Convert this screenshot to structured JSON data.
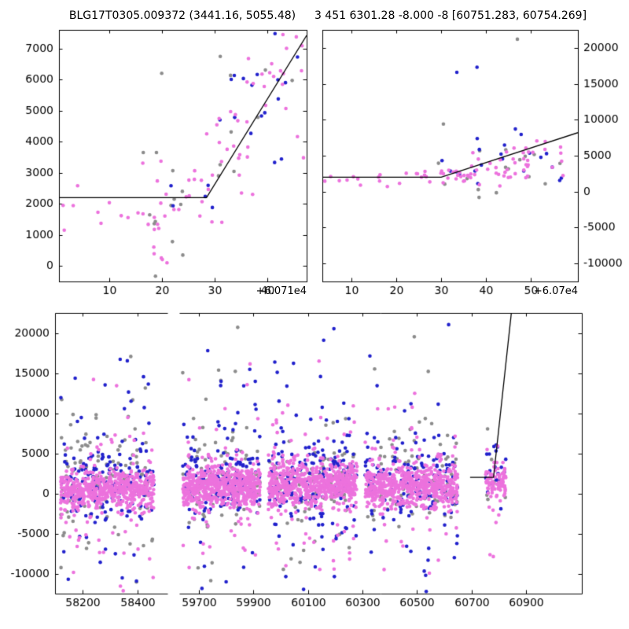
{
  "chart_data": {
    "type": "scatter",
    "grid": false,
    "colors": {
      "magenta": "#ec72dd",
      "blue": "#2222cc",
      "gray": "#8c8c8c",
      "fit_line": "#000000"
    },
    "render": {
      "seed": 1337,
      "marker_radius": 2.3
    },
    "panels": {
      "top_left": {
        "title": "BLG17T0305.009372 (3441.16, 5055.48)",
        "xlim": [
          0.5,
          47.5
        ],
        "ylim": [
          -500,
          7600
        ],
        "xticks": [
          10,
          20,
          30,
          40
        ],
        "yticks": [
          0,
          1000,
          2000,
          3000,
          4000,
          5000,
          6000,
          7000
        ],
        "x_offset_label": "+6.071e4",
        "y_label_side": "left",
        "fit_line": [
          [
            0.5,
            2200
          ],
          [
            28.5,
            2200
          ],
          [
            47.5,
            7420
          ]
        ],
        "clusters": [
          {
            "color": "magenta",
            "n": 6,
            "x": [
              0.5,
              12
            ],
            "mean": 1800,
            "sig": 700,
            "out_frac": 0,
            "out_sig": 0
          },
          {
            "color": "magenta",
            "n": 20,
            "x": [
              12,
              28
            ],
            "mean": 2200,
            "sig": 650,
            "out_frac": 0,
            "out_sig": 0
          },
          {
            "color": "magenta",
            "n": 8,
            "x": [
              17,
              27
            ],
            "mean": 900,
            "sig": 550,
            "out_frac": 0,
            "out_sig": 0
          },
          {
            "color": "magenta",
            "n": 22,
            "x": [
              27,
              38
            ],
            "mean": 3400,
            "sig": 850,
            "out_frac": 0,
            "out_sig": 0
          },
          {
            "color": "magenta",
            "n": 20,
            "x": [
              36,
              47.5
            ],
            "mean": 5600,
            "sig": 1050,
            "out_frac": 0,
            "out_sig": 0
          },
          {
            "color": "blue",
            "n": 5,
            "x": [
              18,
              30
            ],
            "mean": 2400,
            "sig": 500,
            "out_frac": 0,
            "out_sig": 0
          },
          {
            "color": "blue",
            "n": 16,
            "x": [
              30,
              47.5
            ],
            "mean": 5400,
            "sig": 1100,
            "out_frac": 0,
            "out_sig": 0
          },
          {
            "color": "gray",
            "n": 10,
            "x": [
              16,
              30
            ],
            "mean": 1700,
            "sig": 850,
            "out_frac": 0,
            "out_sig": 0
          },
          {
            "color": "gray",
            "n": 9,
            "x": [
              28,
              47.5
            ],
            "mean": 4800,
            "sig": 1400,
            "out_frac": 0,
            "out_sig": 0
          }
        ],
        "extra_points": [
          {
            "color": "gray",
            "x": 20,
            "y": 6200
          },
          {
            "color": "gray",
            "x": 16.5,
            "y": 3650
          },
          {
            "color": "gray",
            "x": 19,
            "y": 3650
          },
          {
            "color": "magenta",
            "x": 1.5,
            "y": 1150
          },
          {
            "color": "magenta",
            "x": 43,
            "y": 7450
          },
          {
            "color": "blue",
            "x": 41.5,
            "y": 7480
          },
          {
            "color": "magenta",
            "x": 21,
            "y": 100
          },
          {
            "color": "gray",
            "x": 24,
            "y": 350
          }
        ]
      },
      "top_right": {
        "title": "3 451 6301.28 -8.000 -8 [60751.283, 60754.269]",
        "xlim": [
          3.5,
          60.5
        ],
        "ylim": [
          -12500,
          22500
        ],
        "xticks": [
          10,
          20,
          30,
          40,
          50
        ],
        "yticks": [
          -10000,
          -5000,
          0,
          5000,
          10000,
          15000,
          20000
        ],
        "x_offset_label": "+6.07e4",
        "y_label_side": "right",
        "fit_line": [
          [
            3.5,
            2000
          ],
          [
            30,
            2000
          ],
          [
            60.5,
            8200
          ]
        ],
        "clusters": [
          {
            "color": "magenta",
            "n": 10,
            "x": [
              4,
              22
            ],
            "mean": 1900,
            "sig": 500,
            "out_frac": 0,
            "out_sig": 0
          },
          {
            "color": "magenta",
            "n": 28,
            "x": [
              22,
              38
            ],
            "mean": 2200,
            "sig": 650,
            "out_frac": 0,
            "out_sig": 0
          },
          {
            "color": "magenta",
            "n": 26,
            "x": [
              36,
              50
            ],
            "mean": 3200,
            "sig": 1000,
            "out_frac": 0,
            "out_sig": 0
          },
          {
            "color": "magenta",
            "n": 16,
            "x": [
              46,
              58
            ],
            "mean": 5200,
            "sig": 1300,
            "out_frac": 0,
            "out_sig": 0
          },
          {
            "color": "blue",
            "n": 7,
            "x": [
              26,
              40
            ],
            "mean": 2600,
            "sig": 800,
            "out_frac": 0,
            "out_sig": 0
          },
          {
            "color": "blue",
            "n": 14,
            "x": [
              38,
              58
            ],
            "mean": 5000,
            "sig": 1600,
            "out_frac": 0,
            "out_sig": 0
          },
          {
            "color": "gray",
            "n": 9,
            "x": [
              24,
              45
            ],
            "mean": 2000,
            "sig": 1500,
            "out_frac": 0,
            "out_sig": 0
          },
          {
            "color": "gray",
            "n": 7,
            "x": [
              42,
              58
            ],
            "mean": 4800,
            "sig": 2200,
            "out_frac": 0,
            "out_sig": 0
          }
        ],
        "extra_points": [
          {
            "color": "blue",
            "x": 38,
            "y": 17300
          },
          {
            "color": "blue",
            "x": 33.5,
            "y": 16600
          },
          {
            "color": "gray",
            "x": 47,
            "y": 21200
          },
          {
            "color": "gray",
            "x": 30.5,
            "y": 9400
          },
          {
            "color": "magenta",
            "x": 12,
            "y": 900
          },
          {
            "color": "magenta",
            "x": 18,
            "y": 700
          }
        ]
      },
      "bottom": {
        "ylim": [
          -12500,
          22500
        ],
        "yticks": [
          -10000,
          -5000,
          0,
          5000,
          10000,
          15000,
          20000
        ],
        "y_label_side": "left",
        "segments": [
          {
            "xlim": [
              58100,
              58509
            ],
            "ticks": [
              58200,
              58400
            ]
          },
          {
            "xlim": [
              59628,
              61105
            ],
            "ticks": [
              59700,
              59900,
              60100,
              60300,
              60500,
              60700,
              60900
            ]
          }
        ],
        "fit_line": [
          [
            60695,
            2000
          ],
          [
            60781,
            2000
          ],
          [
            60856,
            25500
          ]
        ],
        "clusters": [
          {
            "color": "gray",
            "n": 120,
            "x": [
              58120,
              58460
            ],
            "mean": 1500,
            "sig": 2800,
            "out_frac": 0.3,
            "out_sig": 8500
          },
          {
            "color": "gray",
            "n": 95,
            "x": [
              59640,
              59925
            ],
            "mean": 1200,
            "sig": 2500,
            "out_frac": 0.25,
            "out_sig": 7500
          },
          {
            "color": "gray",
            "n": 95,
            "x": [
              59955,
              60280
            ],
            "mean": 1000,
            "sig": 2200,
            "out_frac": 0.25,
            "out_sig": 7000
          },
          {
            "color": "gray",
            "n": 95,
            "x": [
              60310,
              60650
            ],
            "mean": 1200,
            "sig": 2500,
            "out_frac": 0.25,
            "out_sig": 7500
          },
          {
            "color": "gray",
            "n": 12,
            "x": [
              60752,
              60826
            ],
            "mean": 1200,
            "sig": 1500,
            "out_frac": 0.1,
            "out_sig": 5000
          },
          {
            "color": "blue",
            "n": 170,
            "x": [
              58120,
              58460
            ],
            "mean": 1200,
            "sig": 2400,
            "out_frac": 0.28,
            "out_sig": 8200
          },
          {
            "color": "blue",
            "n": 165,
            "x": [
              59640,
              59925
            ],
            "mean": 1500,
            "sig": 2300,
            "out_frac": 0.28,
            "out_sig": 8000
          },
          {
            "color": "blue",
            "n": 185,
            "x": [
              59955,
              60280
            ],
            "mean": 1800,
            "sig": 2600,
            "out_frac": 0.28,
            "out_sig": 8000
          },
          {
            "color": "blue",
            "n": 165,
            "x": [
              60310,
              60650
            ],
            "mean": 1500,
            "sig": 2300,
            "out_frac": 0.28,
            "out_sig": 8000
          },
          {
            "color": "blue",
            "n": 20,
            "x": [
              60752,
              60826
            ],
            "mean": 2800,
            "sig": 2400,
            "out_frac": 0.1,
            "out_sig": 5000
          },
          {
            "color": "magenta",
            "n": 600,
            "x": [
              58120,
              58460
            ],
            "mean": 400,
            "sig": 1100,
            "out_frac": 0.12,
            "out_sig": 5200
          },
          {
            "color": "magenta",
            "n": 620,
            "x": [
              59640,
              59925
            ],
            "mean": 900,
            "sig": 1300,
            "out_frac": 0.12,
            "out_sig": 5500
          },
          {
            "color": "magenta",
            "n": 680,
            "x": [
              59955,
              60280
            ],
            "mean": 1100,
            "sig": 1400,
            "out_frac": 0.12,
            "out_sig": 5500
          },
          {
            "color": "magenta",
            "n": 620,
            "x": [
              60310,
              60650
            ],
            "mean": 900,
            "sig": 1300,
            "out_frac": 0.12,
            "out_sig": 5500
          },
          {
            "color": "magenta",
            "n": 90,
            "x": [
              60752,
              60826
            ],
            "mean": 1800,
            "sig": 1100,
            "out_frac": 0.08,
            "out_sig": 3800
          }
        ]
      }
    }
  }
}
